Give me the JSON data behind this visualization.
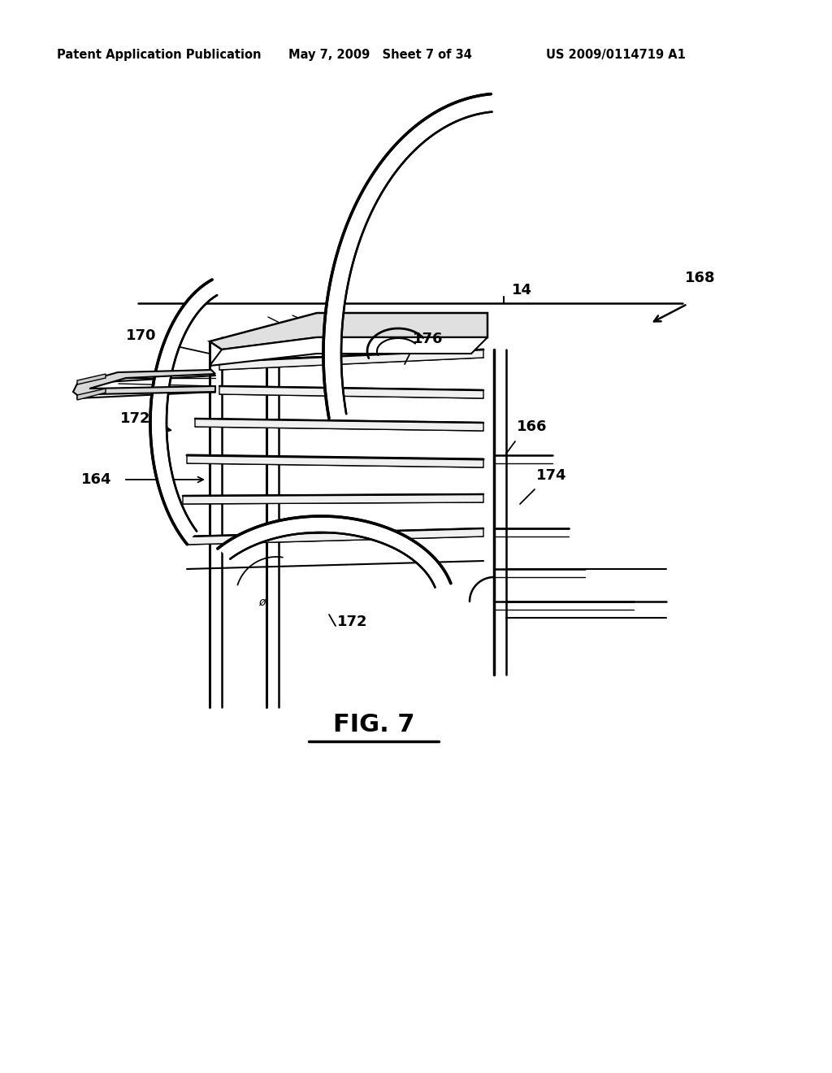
{
  "background_color": "#ffffff",
  "header_left": "Patent Application Publication",
  "header_middle": "May 7, 2009   Sheet 7 of 34",
  "header_right": "US 2009/0114719 A1",
  "figure_label": "FIG. 7",
  "line_color": "#000000",
  "text_color": "#000000",
  "label_fontsize": 13,
  "header_fontsize": 10.5
}
